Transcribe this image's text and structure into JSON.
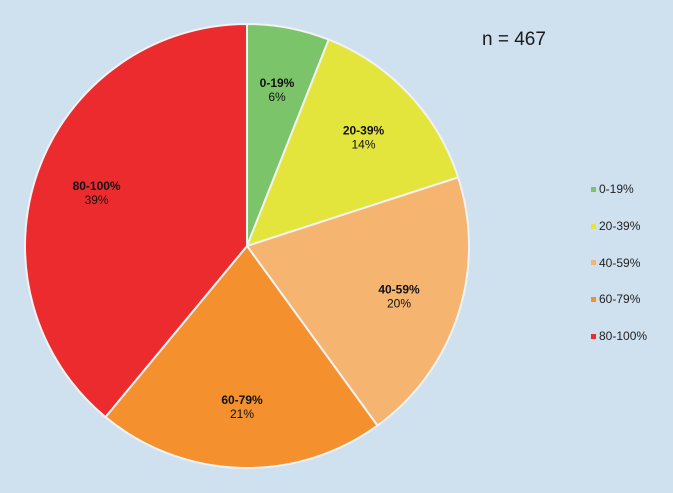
{
  "chart_data": {
    "type": "pie",
    "title": "",
    "annotation": "n = 467",
    "legend_position": "right",
    "slices": [
      {
        "label": "0-19%",
        "value": 6,
        "value_label": "6%",
        "color": "#7cc46a"
      },
      {
        "label": "20-39%",
        "value": 14,
        "value_label": "14%",
        "color": "#e3e53c"
      },
      {
        "label": "40-59%",
        "value": 20,
        "value_label": "20%",
        "color": "#f5b571"
      },
      {
        "label": "60-79%",
        "value": 21,
        "value_label": "21%",
        "color": "#f4912e"
      },
      {
        "label": "80-100%",
        "value": 39,
        "value_label": "39%",
        "color": "#ec2b2f"
      }
    ]
  }
}
